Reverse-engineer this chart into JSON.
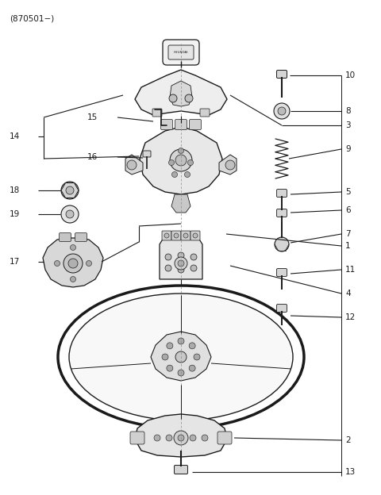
{
  "title": "(870501−)",
  "background_color": "#ffffff",
  "line_color": "#1a1a1a",
  "text_color": "#1a1a1a",
  "fig_width": 4.8,
  "fig_height": 6.24,
  "dpi": 100
}
